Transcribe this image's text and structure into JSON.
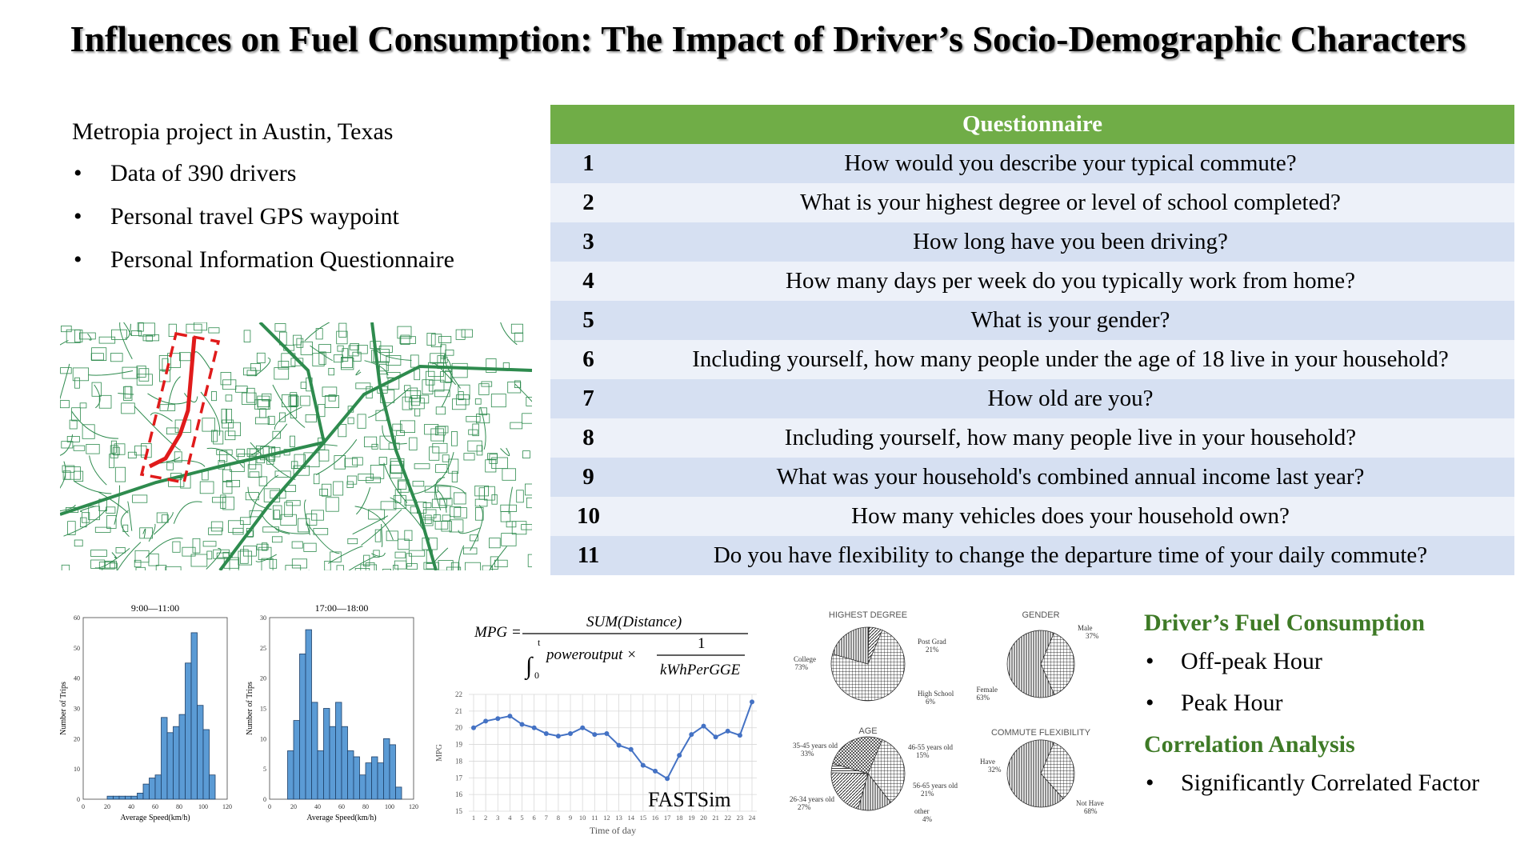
{
  "title": "Influences on Fuel Consumption: The Impact of Driver’s Socio-Demographic Characters",
  "intro": {
    "lead": "Metropia project in Austin, Texas",
    "bullets": [
      "Data of 390 drivers",
      "Personal travel GPS waypoint",
      "Personal Information Questionnaire"
    ]
  },
  "questionnaire": {
    "header": "Questionnaire",
    "rows": [
      {
        "n": "1",
        "q": "How would you describe your typical commute?"
      },
      {
        "n": "2",
        "q": "What is your highest degree or level of school completed?"
      },
      {
        "n": "3",
        "q": "How long have you been driving?"
      },
      {
        "n": "4",
        "q": "How many days per week do you typically work from home?"
      },
      {
        "n": "5",
        "q": "What is your gender?"
      },
      {
        "n": "6",
        "q": "Including yourself, how many people under the age of 18 live in your household?"
      },
      {
        "n": "7",
        "q": "How old are you?"
      },
      {
        "n": "8",
        "q": "Including yourself, how many people live in your household?"
      },
      {
        "n": "9",
        "q": "What was your household's combined annual income last year?"
      },
      {
        "n": "10",
        "q": "How many vehicles does your household own?"
      },
      {
        "n": "11",
        "q": "Do you have flexibility to change the departure time of your daily commute?"
      }
    ]
  },
  "summary": {
    "fuel_header": "Driver’s Fuel Consumption",
    "fuel_bullets": [
      "Off-peak Hour",
      "Peak Hour"
    ],
    "corr_header": "Correlation Analysis",
    "corr_bullets": [
      "Significantly Correlated Factor"
    ]
  },
  "formula": {
    "lhs": "MPG =",
    "numerator": "SUM(Distance)",
    "integral": "∫",
    "lower": "0",
    "upper": "t",
    "den_left": "poweroutput ×",
    "frac_num": "1",
    "frac_den": "kWhPerGGE"
  },
  "fastsim_label": "FASTSim",
  "colors": {
    "bar": "#5b9bd5",
    "line": "#4472c4",
    "green": "#70ad47",
    "map": "#2e8b4e",
    "route": "#e01b1b"
  },
  "chart_data": [
    {
      "type": "bar",
      "title": "9:00—11:00",
      "xlabel": "Average Speed(km/h)",
      "ylabel": "Number of Trips",
      "x_ticks": [
        "0",
        "20",
        "40",
        "60",
        "80",
        "100",
        "120"
      ],
      "y_ticks": [
        "0",
        "10",
        "20",
        "30",
        "40",
        "50",
        "60"
      ],
      "xlim": [
        0,
        120
      ],
      "ylim": [
        0,
        60
      ],
      "bin_width": 5,
      "bin_starts": [
        20,
        25,
        30,
        35,
        40,
        45,
        50,
        55,
        60,
        65,
        70,
        75,
        80,
        85,
        90,
        95,
        100,
        105,
        110,
        115
      ],
      "values": [
        1,
        1,
        1,
        1,
        1,
        2,
        5,
        7,
        8,
        27,
        22,
        24,
        28,
        45,
        55,
        31,
        23,
        8,
        0,
        0
      ]
    },
    {
      "type": "bar",
      "title": "17:00—18:00",
      "xlabel": "Average Speed(km/h)",
      "ylabel": "Number of Trips",
      "x_ticks": [
        "0",
        "20",
        "40",
        "60",
        "80",
        "100",
        "120"
      ],
      "y_ticks": [
        "0",
        "5",
        "10",
        "15",
        "20",
        "25",
        "30"
      ],
      "xlim": [
        0,
        120
      ],
      "ylim": [
        0,
        30
      ],
      "bin_width": 5,
      "bin_starts": [
        15,
        20,
        25,
        30,
        35,
        40,
        45,
        50,
        55,
        60,
        65,
        70,
        75,
        80,
        85,
        90,
        95,
        100,
        105
      ],
      "values": [
        8,
        13,
        24,
        28,
        16,
        8,
        15,
        12,
        16,
        12,
        8,
        7,
        4,
        6,
        7,
        6,
        10,
        9,
        2
      ]
    },
    {
      "type": "line",
      "xlabel": "Time of day",
      "ylabel": "MPG",
      "x": [
        1,
        2,
        3,
        4,
        5,
        6,
        7,
        8,
        9,
        10,
        11,
        12,
        13,
        14,
        15,
        16,
        17,
        18,
        19,
        20,
        21,
        22,
        23,
        24
      ],
      "y": [
        20.0,
        20.4,
        20.55,
        20.7,
        20.2,
        20.0,
        19.65,
        19.5,
        19.65,
        20.0,
        19.6,
        19.65,
        18.95,
        18.7,
        17.75,
        17.4,
        16.95,
        18.35,
        19.6,
        20.1,
        19.45,
        19.8,
        19.55,
        21.55
      ],
      "ylim": [
        15,
        22
      ],
      "y_ticks": [
        "15",
        "16",
        "17",
        "18",
        "19",
        "20",
        "21",
        "22"
      ],
      "x_ticks": [
        "1",
        "2",
        "3",
        "4",
        "5",
        "6",
        "7",
        "8",
        "9",
        "10",
        "11",
        "12",
        "13",
        "14",
        "15",
        "16",
        "17",
        "18",
        "19",
        "20",
        "21",
        "22",
        "23",
        "24"
      ]
    },
    {
      "type": "pie",
      "title": "HIGHEST DEGREE",
      "slices": [
        {
          "label": "College",
          "pct": "73%",
          "value": 73
        },
        {
          "label": "Post Grad",
          "pct": "21%",
          "value": 21
        },
        {
          "label": "High School",
          "pct": "6%",
          "value": 6
        }
      ]
    },
    {
      "type": "pie",
      "title": "GENDER",
      "slices": [
        {
          "label": "Male",
          "pct": "37%",
          "value": 37
        },
        {
          "label": "Female",
          "pct": "63%",
          "value": 63
        }
      ]
    },
    {
      "type": "pie",
      "title": "AGE",
      "slices": [
        {
          "label": "35-45 years old",
          "pct": "33%",
          "value": 33
        },
        {
          "label": "46-55 years old",
          "pct": "15%",
          "value": 15
        },
        {
          "label": "56-65 years old",
          "pct": "21%",
          "value": 21
        },
        {
          "label": "other",
          "pct": "4%",
          "value": 4
        },
        {
          "label": "26-34 years old",
          "pct": "27%",
          "value": 27
        }
      ]
    },
    {
      "type": "pie",
      "title": "COMMUTE FLEXIBILITY",
      "slices": [
        {
          "label": "Have",
          "pct": "32%",
          "value": 32
        },
        {
          "label": "Not Have",
          "pct": "68%",
          "value": 68
        }
      ]
    }
  ]
}
